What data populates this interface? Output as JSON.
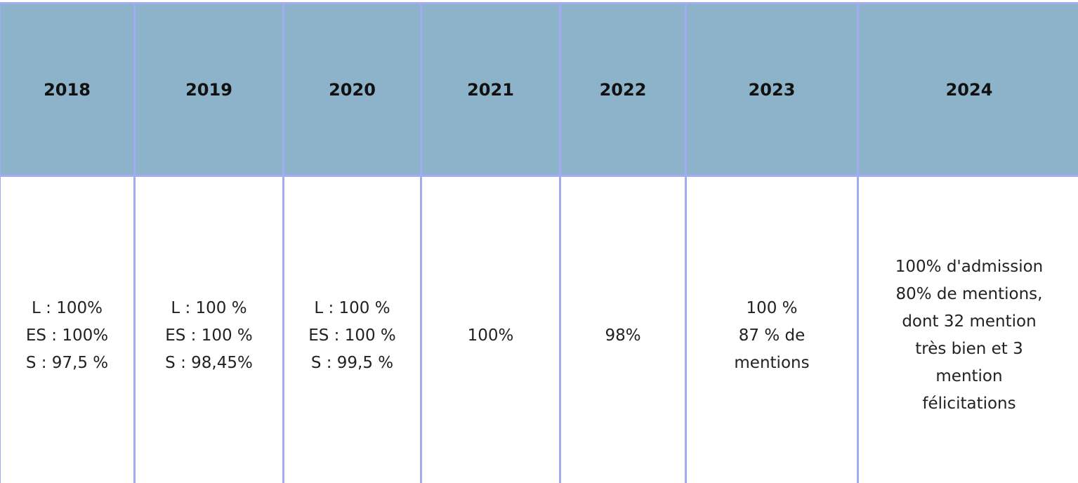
{
  "table": {
    "headers": [
      "2018",
      "2019",
      "2020",
      "2021",
      "2022",
      "2023",
      "2024"
    ],
    "rows": [
      [
        [
          "L : 100%",
          "ES : 100%",
          "S : 97,5 %"
        ],
        [
          "L : 100 %",
          "ES : 100 %",
          "S : 98,45%"
        ],
        [
          "L : 100 %",
          "ES : 100 %",
          "S : 99,5 %"
        ],
        [
          "100%"
        ],
        [
          "98%"
        ],
        [
          "100 %",
          "87 % de",
          "mentions"
        ],
        [
          "100% d'admission",
          "80% de mentions,",
          "dont 32 mention",
          "très bien et 3",
          "mention",
          "félicitations"
        ]
      ]
    ]
  }
}
